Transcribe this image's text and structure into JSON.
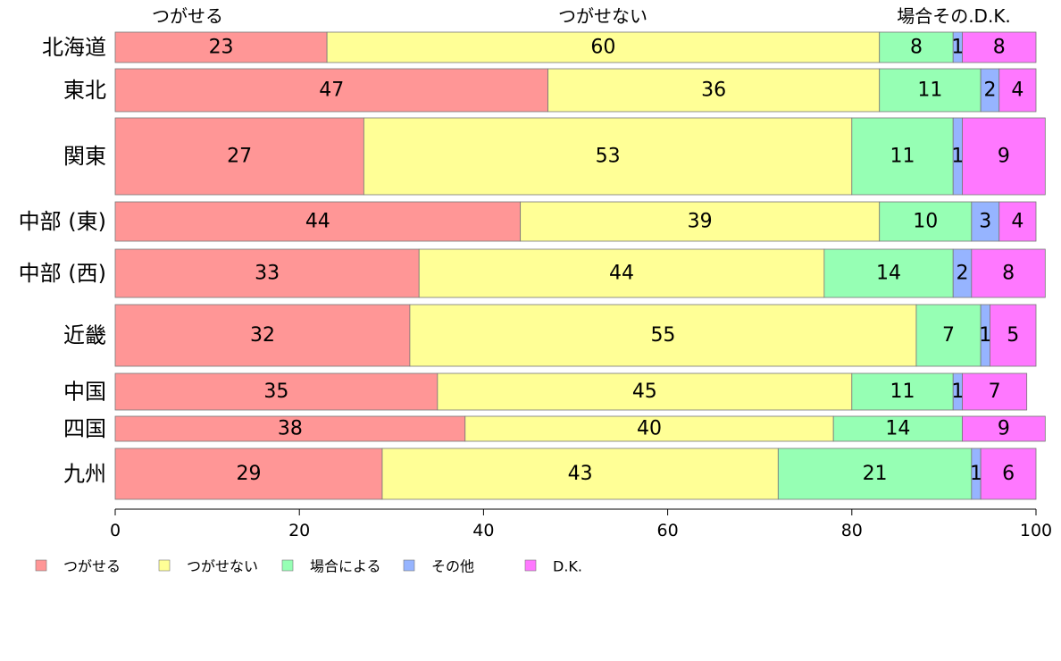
{
  "chart_data": {
    "type": "bar",
    "orientation": "horizontal",
    "stacked": true,
    "categories": [
      "北海道",
      "東北",
      "関東",
      "中部 (東)",
      "中部 (西)",
      "近畿",
      "中国",
      "四国",
      "九州"
    ],
    "series": [
      {
        "name": "つがせる",
        "color": "#FF9696",
        "values": [
          23,
          47,
          27,
          44,
          33,
          32,
          35,
          38,
          29
        ]
      },
      {
        "name": "つがせない",
        "color": "#FFFF96",
        "values": [
          60,
          36,
          53,
          39,
          44,
          55,
          45,
          40,
          43
        ]
      },
      {
        "name": "場合による",
        "color": "#96FFB4",
        "values": [
          8,
          11,
          11,
          10,
          14,
          7,
          11,
          14,
          21
        ]
      },
      {
        "name": "その他",
        "color": "#96B4FF",
        "values": [
          1,
          2,
          1,
          3,
          2,
          1,
          1,
          0,
          1
        ]
      },
      {
        "name": "D.K.",
        "color": "#FF78FF",
        "values": [
          8,
          4,
          9,
          4,
          8,
          5,
          7,
          9,
          6
        ]
      }
    ],
    "top_labels": [
      "つがせる",
      "つがせない",
      "場合その.D.K."
    ],
    "xlim": [
      0,
      100
    ],
    "xticks": [
      0,
      20,
      40,
      60,
      80,
      100
    ],
    "grid": false,
    "legend_position": "bottom"
  }
}
